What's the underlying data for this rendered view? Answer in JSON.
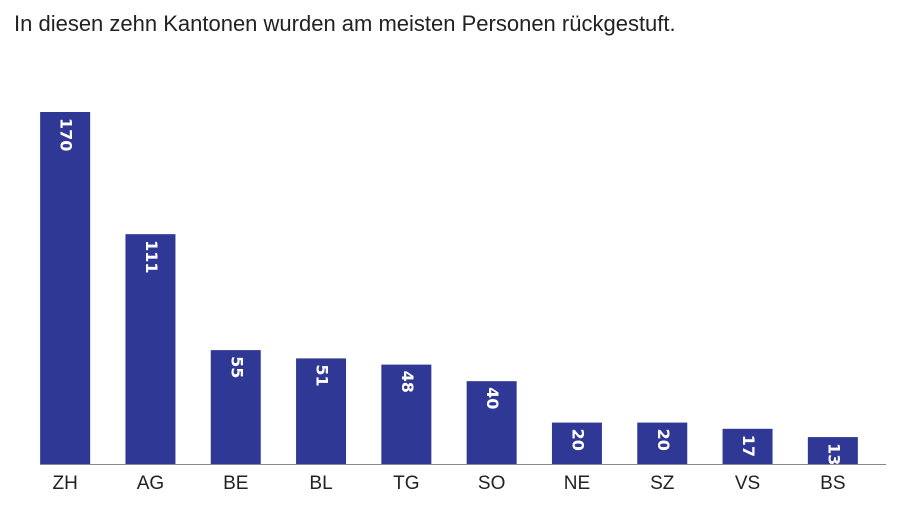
{
  "chart_data": {
    "type": "bar",
    "title": "In diesen zehn Kantonen wurden am meisten Personen rückgestuft.",
    "categories": [
      "ZH",
      "AG",
      "BE",
      "BL",
      "TG",
      "SO",
      "NE",
      "SZ",
      "VS",
      "BS"
    ],
    "values": [
      170,
      111,
      55,
      51,
      48,
      40,
      20,
      20,
      17,
      13
    ],
    "color": "#303895",
    "data_labels": true
  }
}
